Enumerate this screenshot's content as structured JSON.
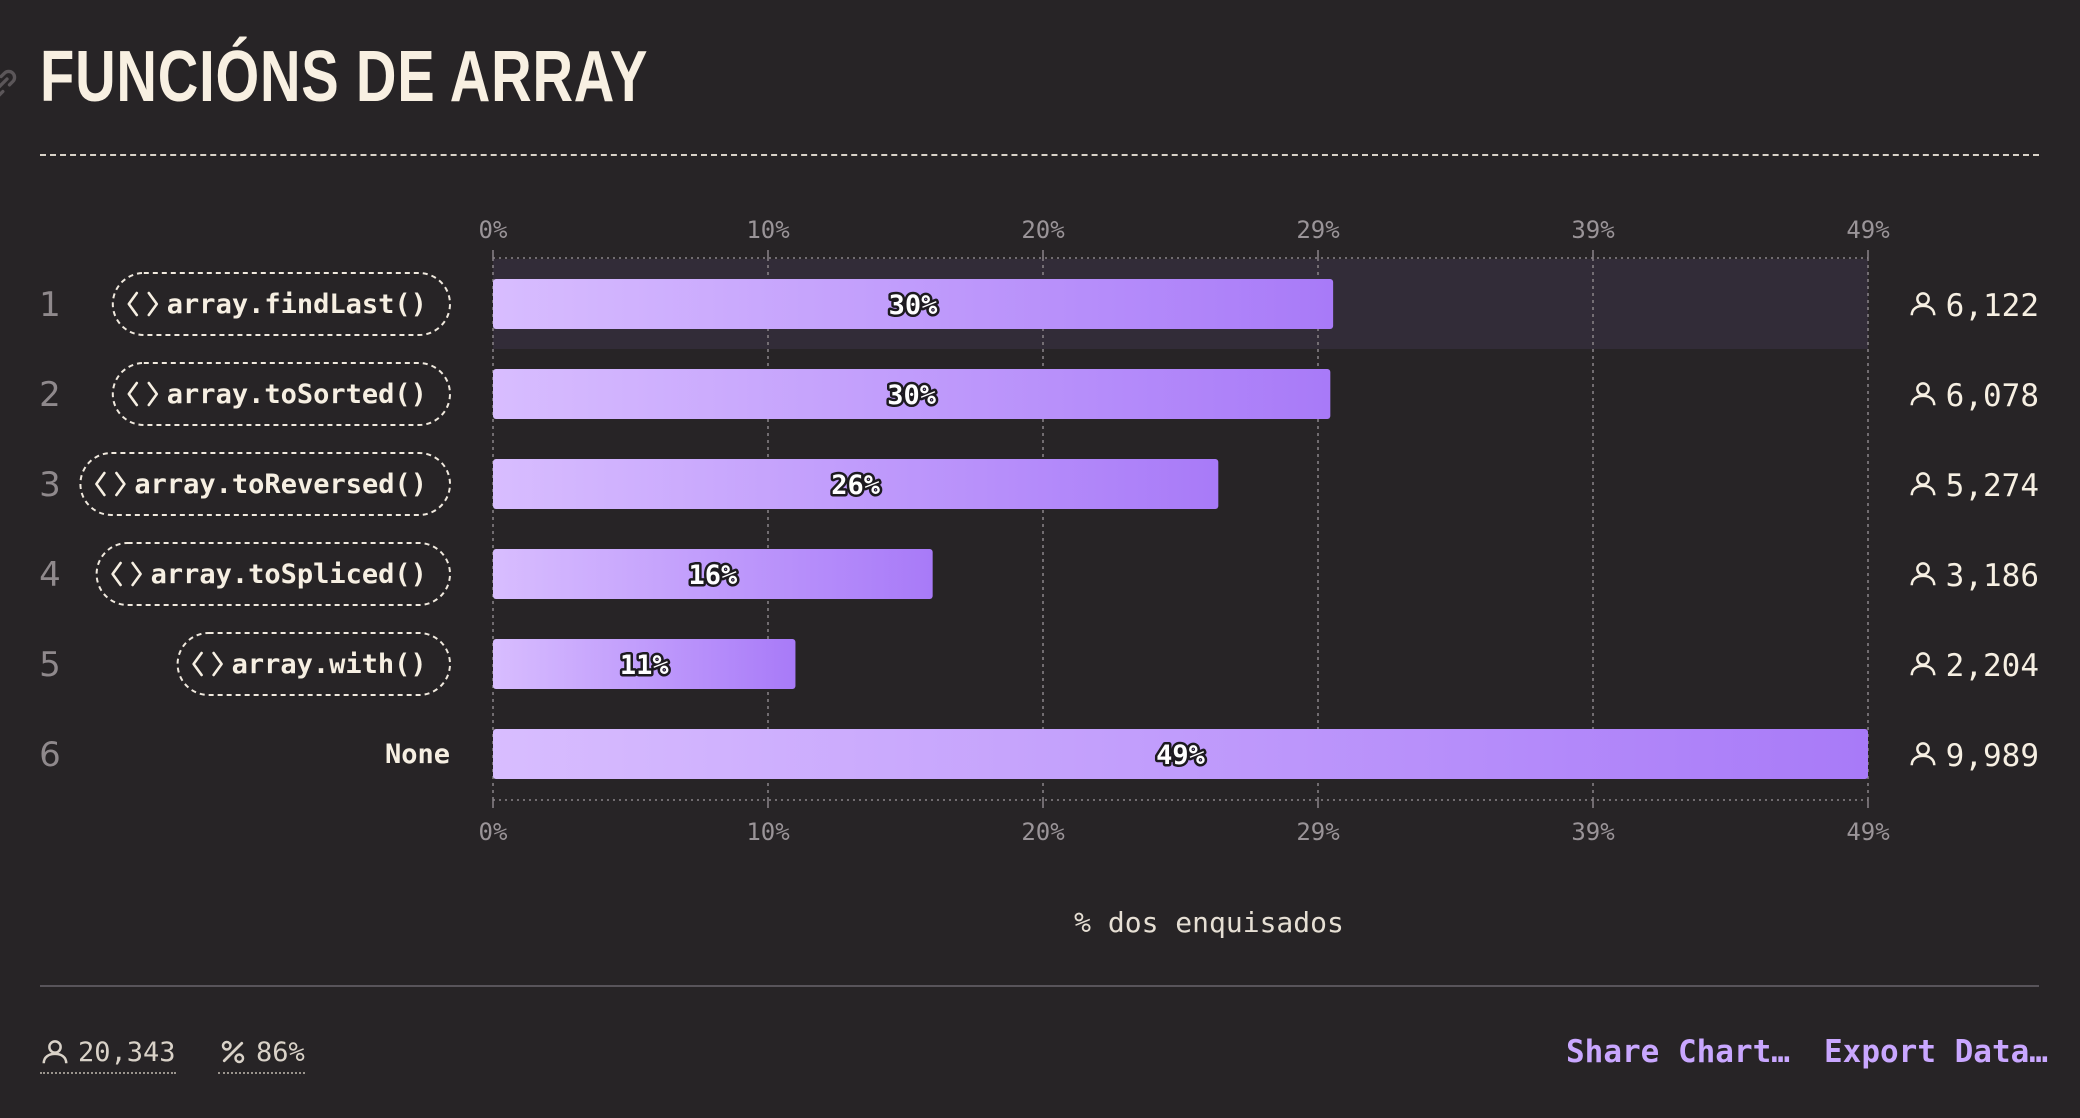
{
  "title": "FUNCIÓNS DE ARRAY",
  "icons": {
    "title_link": "link-icon",
    "respondents": "person-icon",
    "code": "code-brackets-icon",
    "percent": "percent-icon"
  },
  "colors": {
    "background": "#272426",
    "bar_start": "#d8bdff",
    "bar_end": "#a87af8",
    "accent_link": "#c9a7ff",
    "title": "#f8f0e2"
  },
  "chart_data": {
    "type": "bar",
    "orientation": "horizontal",
    "xlabel": "% dos enquisados",
    "x_ticks": [
      "0%",
      "10%",
      "20%",
      "29%",
      "39%",
      "49%"
    ],
    "xlim": [
      0,
      49.1
    ],
    "grid": true,
    "rows": [
      {
        "rank": "1",
        "label": "array.findLast()",
        "code": true,
        "percent": 30,
        "percent_label": "30%",
        "respondents": "6,122"
      },
      {
        "rank": "2",
        "label": "array.toSorted()",
        "code": true,
        "percent": 29.9,
        "percent_label": "30%",
        "respondents": "6,078"
      },
      {
        "rank": "3",
        "label": "array.toReversed()",
        "code": true,
        "percent": 25.9,
        "percent_label": "26%",
        "respondents": "5,274"
      },
      {
        "rank": "4",
        "label": "array.toSpliced()",
        "code": true,
        "percent": 15.7,
        "percent_label": "16%",
        "respondents": "3,186"
      },
      {
        "rank": "5",
        "label": "array.with()",
        "code": true,
        "percent": 10.8,
        "percent_label": "11%",
        "respondents": "2,204"
      },
      {
        "rank": "6",
        "label": "None",
        "code": false,
        "percent": 49.1,
        "percent_label": "49%",
        "respondents": "9,989"
      }
    ]
  },
  "footer": {
    "respondents_total": "20,343",
    "completion": "86%",
    "share_label": "Share Chart…",
    "export_label": "Export Data…"
  }
}
